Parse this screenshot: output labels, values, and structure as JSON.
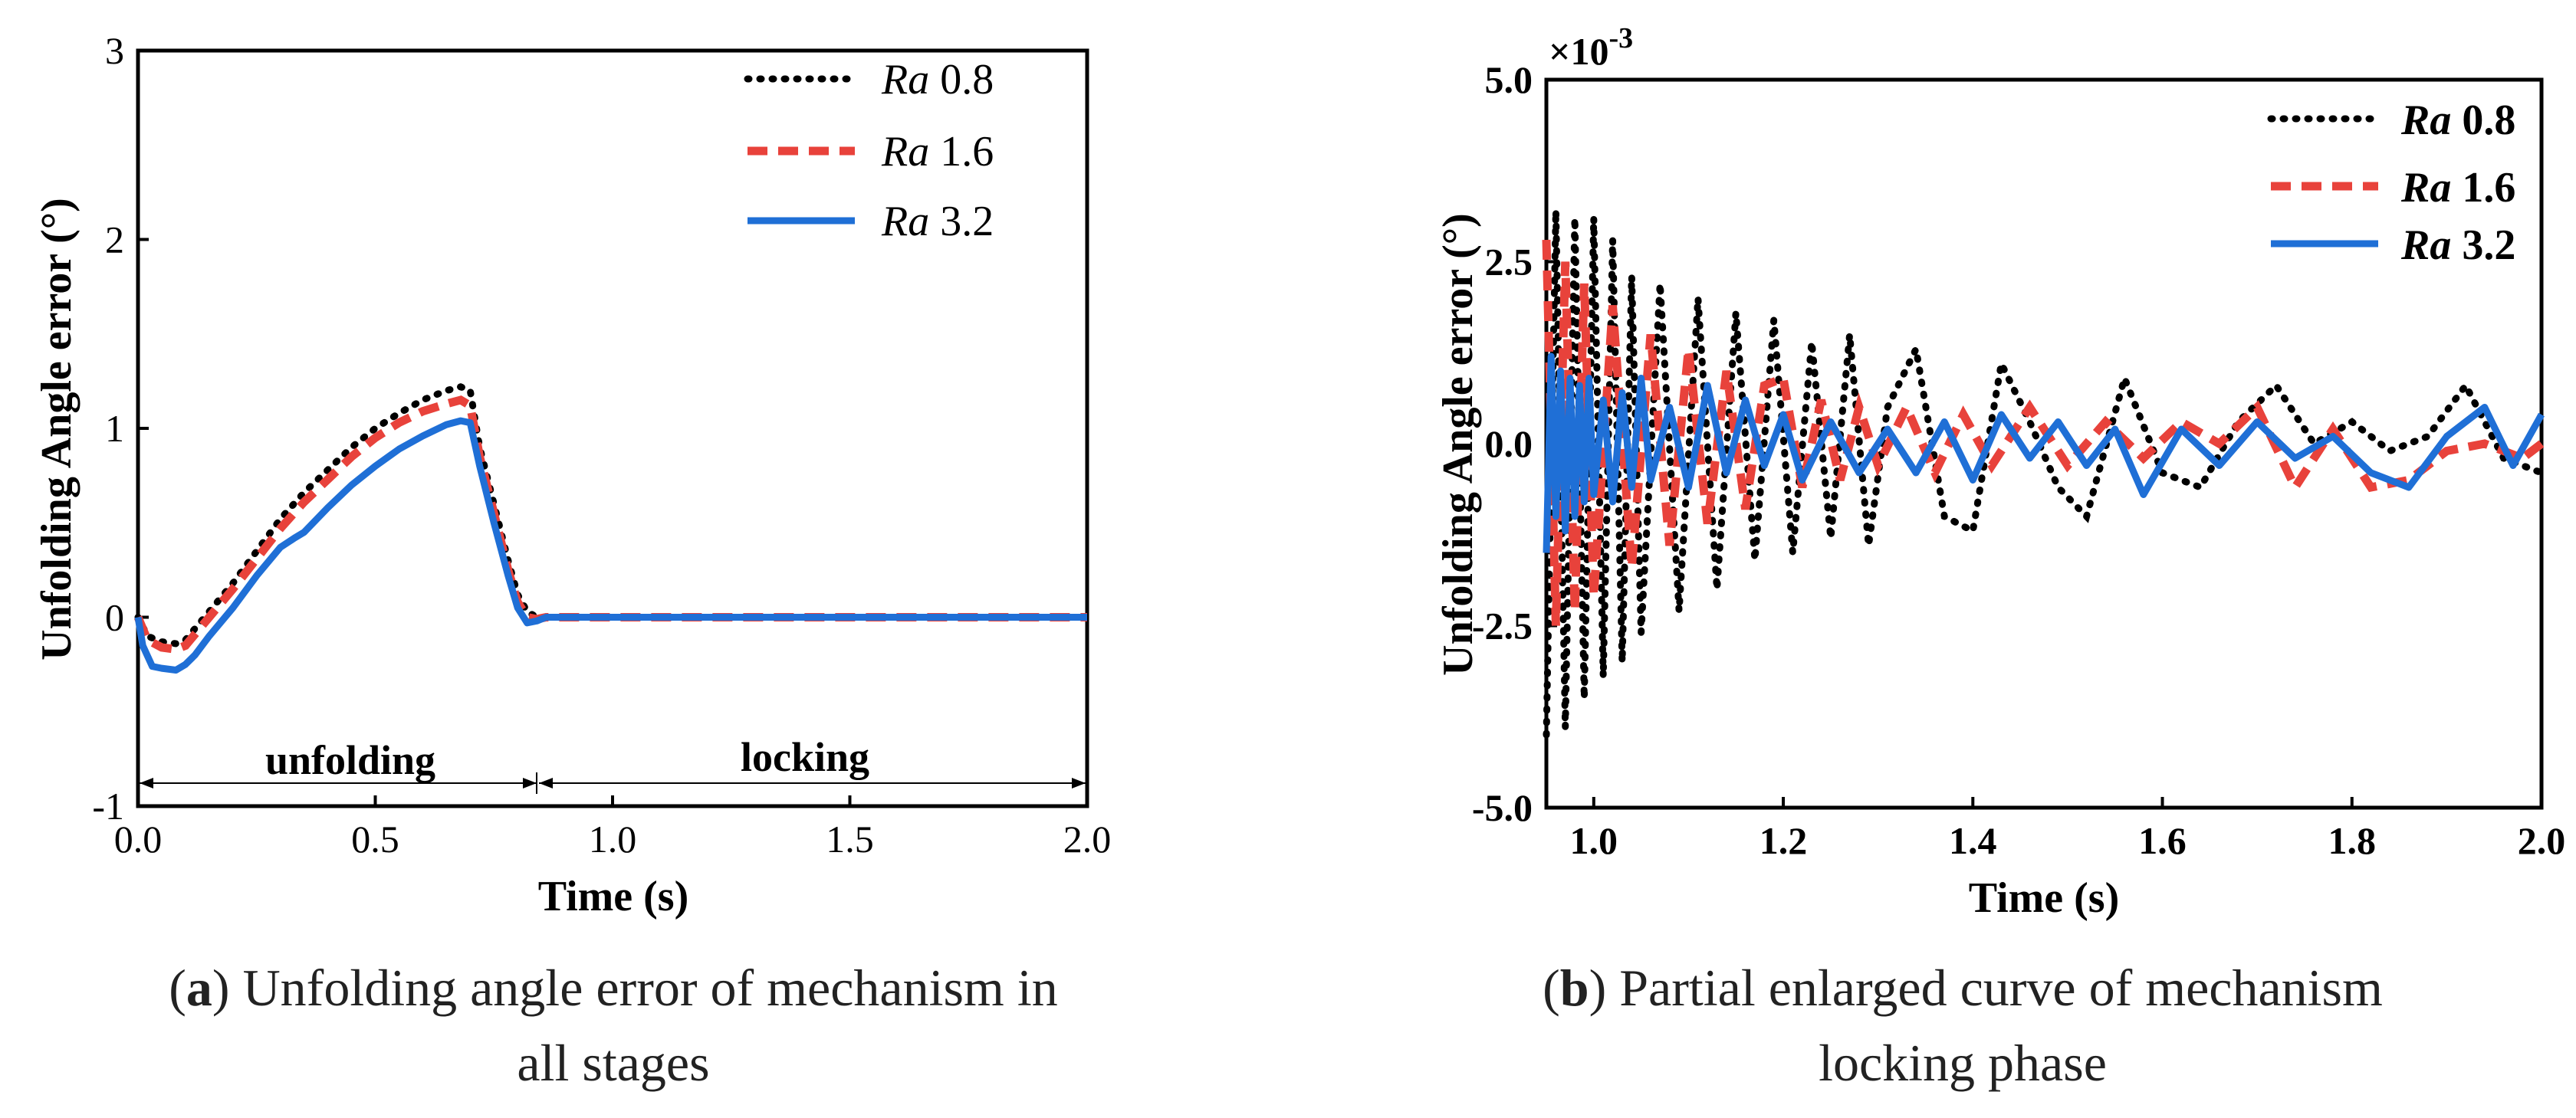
{
  "chart_data": [
    {
      "panel": "a",
      "type": "line",
      "xlabel": "Time (s)",
      "ylabel": "Unfolding Angle error (°)",
      "xlim": [
        0.0,
        2.0
      ],
      "ylim": [
        -1,
        3
      ],
      "xticks": [
        "0.0",
        "0.5",
        "1.0",
        "1.5",
        "2.0"
      ],
      "yticks": [
        "-1",
        "0",
        "1",
        "2",
        "3"
      ],
      "stages": [
        {
          "label": "unfolding",
          "from": 0.0,
          "to": 0.85
        },
        {
          "label": "locking",
          "from": 0.85,
          "to": 2.0
        }
      ],
      "series": [
        {
          "name": "Ra 0.8",
          "prefix": "Ra",
          "value": "0.8",
          "color": "#000000",
          "dash": "dot",
          "x": [
            0,
            0.02,
            0.05,
            0.08,
            0.1,
            0.15,
            0.2,
            0.25,
            0.3,
            0.35,
            0.4,
            0.45,
            0.5,
            0.55,
            0.6,
            0.65,
            0.68,
            0.7,
            0.72,
            0.75,
            0.78,
            0.8,
            0.82,
            0.84,
            0.86,
            2.0
          ],
          "y": [
            0,
            -0.1,
            -0.13,
            -0.14,
            -0.12,
            0.03,
            0.18,
            0.35,
            0.52,
            0.66,
            0.78,
            0.9,
            1.0,
            1.08,
            1.15,
            1.2,
            1.22,
            1.2,
            0.9,
            0.6,
            0.3,
            0.12,
            0.03,
            0.0,
            0.0,
            0.0
          ]
        },
        {
          "name": "Ra 1.6",
          "prefix": "Ra",
          "value": "1.6",
          "color": "#e8423b",
          "dash": "dash",
          "x": [
            0,
            0.02,
            0.05,
            0.08,
            0.1,
            0.15,
            0.2,
            0.25,
            0.3,
            0.35,
            0.4,
            0.45,
            0.5,
            0.55,
            0.6,
            0.65,
            0.68,
            0.7,
            0.72,
            0.75,
            0.78,
            0.8,
            0.82,
            0.84,
            0.86,
            2.0
          ],
          "y": [
            0,
            -0.12,
            -0.16,
            -0.17,
            -0.15,
            -0.0,
            0.15,
            0.31,
            0.47,
            0.61,
            0.73,
            0.85,
            0.95,
            1.03,
            1.09,
            1.13,
            1.15,
            1.12,
            0.85,
            0.55,
            0.25,
            0.08,
            0.0,
            -0.01,
            0.0,
            0.0
          ]
        },
        {
          "name": "Ra 3.2",
          "prefix": "Ra",
          "value": "3.2",
          "color": "#1f6fd6",
          "dash": "solid",
          "x": [
            0,
            0.01,
            0.03,
            0.05,
            0.08,
            0.1,
            0.12,
            0.15,
            0.2,
            0.25,
            0.3,
            0.33,
            0.35,
            0.4,
            0.45,
            0.5,
            0.55,
            0.6,
            0.65,
            0.68,
            0.7,
            0.72,
            0.75,
            0.78,
            0.8,
            0.82,
            0.84,
            0.86,
            2.0
          ],
          "y": [
            0,
            -0.15,
            -0.26,
            -0.27,
            -0.28,
            -0.25,
            -0.2,
            -0.1,
            0.05,
            0.22,
            0.37,
            0.42,
            0.45,
            0.58,
            0.7,
            0.8,
            0.89,
            0.96,
            1.02,
            1.04,
            1.03,
            0.8,
            0.5,
            0.22,
            0.05,
            -0.03,
            -0.02,
            0.0,
            0.0
          ]
        }
      ]
    },
    {
      "panel": "b",
      "type": "line",
      "xlabel": "Time (s)",
      "ylabel": "Unfolding Angle error  (°)",
      "scale_label": "×10",
      "scale_exponent": "-3",
      "xlim": [
        0.95,
        2.0
      ],
      "ylim": [
        -5.0,
        5.0
      ],
      "xticks": [
        "1.0",
        "1.2",
        "1.4",
        "1.6",
        "1.8",
        "2.0"
      ],
      "yticks": [
        "-5.0",
        "-2.5",
        "0.0",
        "2.5",
        "5.0"
      ],
      "series": [
        {
          "name": "Ra 0.8",
          "prefix": "Ra",
          "value": "0.8",
          "color": "#000000",
          "dash": "dot",
          "x": [
            0.95,
            0.96,
            0.97,
            0.98,
            0.99,
            1.0,
            1.01,
            1.02,
            1.03,
            1.04,
            1.05,
            1.07,
            1.09,
            1.11,
            1.13,
            1.15,
            1.17,
            1.19,
            1.21,
            1.23,
            1.25,
            1.27,
            1.29,
            1.31,
            1.34,
            1.37,
            1.4,
            1.43,
            1.46,
            1.49,
            1.52,
            1.56,
            1.6,
            1.64,
            1.68,
            1.72,
            1.76,
            1.8,
            1.84,
            1.88,
            1.92,
            1.96,
            2.0
          ],
          "y": [
            -4.0,
            3.2,
            -3.9,
            3.1,
            -3.5,
            3.1,
            -3.2,
            2.8,
            -3.0,
            2.3,
            -2.6,
            2.2,
            -2.3,
            2.0,
            -2.0,
            1.8,
            -1.6,
            1.7,
            -1.5,
            1.4,
            -1.3,
            1.5,
            -1.4,
            0.5,
            1.3,
            -1.0,
            -1.2,
            1.1,
            0.3,
            -0.6,
            -1.0,
            0.9,
            -0.4,
            -0.6,
            0.3,
            0.8,
            0.0,
            0.3,
            -0.1,
            0.1,
            0.8,
            -0.2,
            -0.4
          ]
        },
        {
          "name": "Ra 1.6",
          "prefix": "Ra",
          "value": "1.6",
          "color": "#e8423b",
          "dash": "dash",
          "x": [
            0.95,
            0.96,
            0.97,
            0.98,
            0.99,
            1.0,
            1.02,
            1.04,
            1.06,
            1.08,
            1.1,
            1.12,
            1.14,
            1.16,
            1.18,
            1.2,
            1.22,
            1.24,
            1.26,
            1.28,
            1.3,
            1.33,
            1.36,
            1.39,
            1.42,
            1.46,
            1.5,
            1.54,
            1.58,
            1.62,
            1.66,
            1.7,
            1.74,
            1.78,
            1.82,
            1.86,
            1.9,
            1.94,
            1.98,
            2.0
          ],
          "y": [
            2.8,
            -2.5,
            2.5,
            -2.3,
            2.2,
            -2.1,
            1.9,
            -1.7,
            1.5,
            -1.4,
            1.3,
            -1.1,
            1.0,
            -0.9,
            0.8,
            0.9,
            -0.6,
            0.6,
            -0.5,
            0.5,
            -0.3,
            0.5,
            -0.4,
            0.4,
            -0.3,
            0.5,
            -0.3,
            0.3,
            -0.2,
            0.3,
            0.0,
            0.5,
            -0.6,
            0.2,
            -0.6,
            -0.5,
            -0.1,
            0.0,
            -0.2,
            0.0
          ]
        },
        {
          "name": "Ra 3.2",
          "prefix": "Ra",
          "value": "3.2",
          "color": "#1f6fd6",
          "dash": "solid",
          "x": [
            0.95,
            0.955,
            0.96,
            0.965,
            0.97,
            0.975,
            0.98,
            0.985,
            0.99,
            0.995,
            1.0,
            1.01,
            1.02,
            1.03,
            1.04,
            1.05,
            1.06,
            1.08,
            1.1,
            1.12,
            1.14,
            1.16,
            1.18,
            1.2,
            1.22,
            1.25,
            1.28,
            1.31,
            1.34,
            1.37,
            1.4,
            1.43,
            1.46,
            1.49,
            1.52,
            1.55,
            1.58,
            1.62,
            1.66,
            1.7,
            1.74,
            1.78,
            1.82,
            1.86,
            1.9,
            1.94,
            1.97,
            2.0
          ],
          "y": [
            -1.5,
            1.2,
            -1.0,
            1.0,
            -1.2,
            0.9,
            -1.0,
            0.8,
            -0.8,
            0.9,
            -0.7,
            0.6,
            -0.8,
            0.7,
            -0.6,
            0.9,
            -0.5,
            0.5,
            -0.6,
            0.8,
            -0.4,
            0.6,
            -0.3,
            0.4,
            -0.5,
            0.3,
            -0.4,
            0.2,
            -0.4,
            0.3,
            -0.5,
            0.4,
            -0.2,
            0.3,
            -0.3,
            0.2,
            -0.7,
            0.2,
            -0.3,
            0.3,
            -0.2,
            0.1,
            -0.4,
            -0.6,
            0.1,
            0.5,
            -0.3,
            0.4
          ]
        }
      ]
    }
  ],
  "captions": {
    "a": {
      "letter": "a",
      "line1": " Unfolding angle error of mechanism in",
      "line2": "all stages"
    },
    "b": {
      "letter": "b",
      "line1": " Partial enlarged curve of mechanism",
      "line2": "locking phase"
    }
  }
}
